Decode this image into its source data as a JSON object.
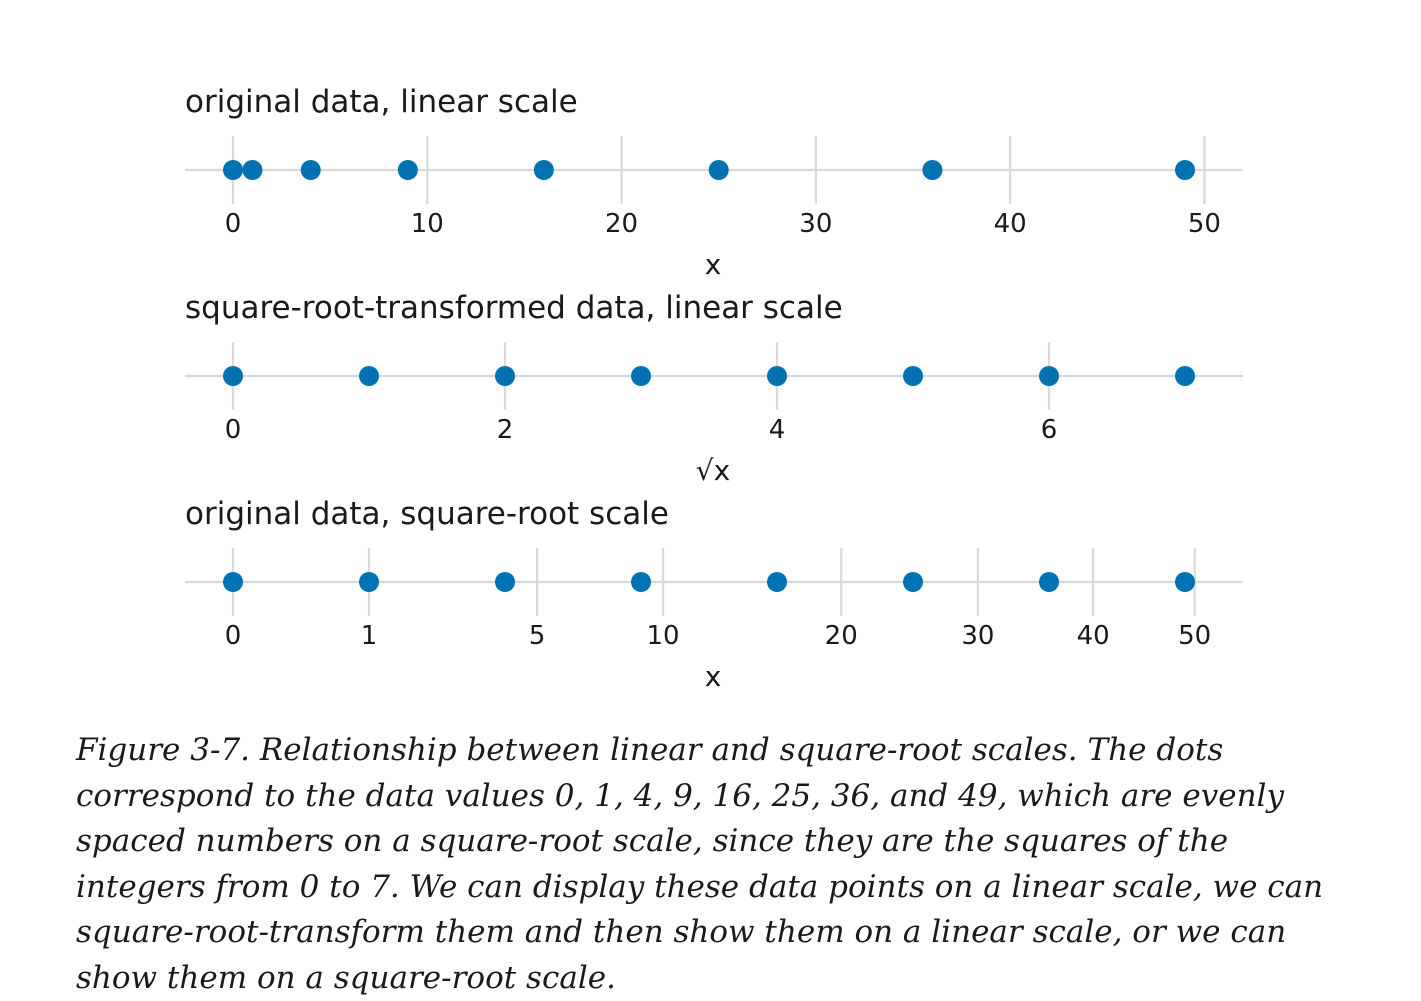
{
  "chart_data": [
    {
      "type": "scatter",
      "title": "original data, linear scale",
      "xlabel": "x",
      "scale": "linear",
      "x": [
        0,
        1,
        4,
        9,
        16,
        25,
        36,
        49
      ],
      "xlim": [
        0,
        49
      ],
      "ticks": [
        0,
        10,
        20,
        30,
        40,
        50
      ],
      "tick_labels": [
        "0",
        "10",
        "20",
        "30",
        "40",
        "50"
      ],
      "point_color": "#0072B2",
      "grid": true
    },
    {
      "type": "scatter",
      "title": "square-root-transformed data, linear scale",
      "xlabel": "√x",
      "scale": "linear",
      "x": [
        0,
        1,
        2,
        3,
        4,
        5,
        6,
        7
      ],
      "xlim": [
        0,
        7
      ],
      "ticks": [
        0,
        2,
        4,
        6
      ],
      "tick_labels": [
        "0",
        "2",
        "4",
        "6"
      ],
      "point_color": "#0072B2",
      "grid": true
    },
    {
      "type": "scatter",
      "title": "original data, square-root scale",
      "xlabel": "x",
      "scale": "sqrt",
      "x": [
        0,
        1,
        4,
        9,
        16,
        25,
        36,
        49
      ],
      "xlim": [
        0,
        49
      ],
      "ticks": [
        0,
        1,
        5,
        10,
        20,
        30,
        40,
        50
      ],
      "tick_labels": [
        "0",
        "1",
        "5",
        "10",
        "20",
        "30",
        "40",
        "50"
      ],
      "point_color": "#0072B2",
      "grid": true
    }
  ],
  "caption": "Figure 3-7. Relationship between linear and square-root scales. The dots correspond to the data values 0, 1, 4, 9, 16, 25, 36, and 49, which are evenly spaced numbers on a square-root scale, since they are the squares of the integers from 0 to 7. We can display these data points on a linear scale, we can square-root-transform them and then show them on a linear scale, or we can show them on a square-root scale."
}
